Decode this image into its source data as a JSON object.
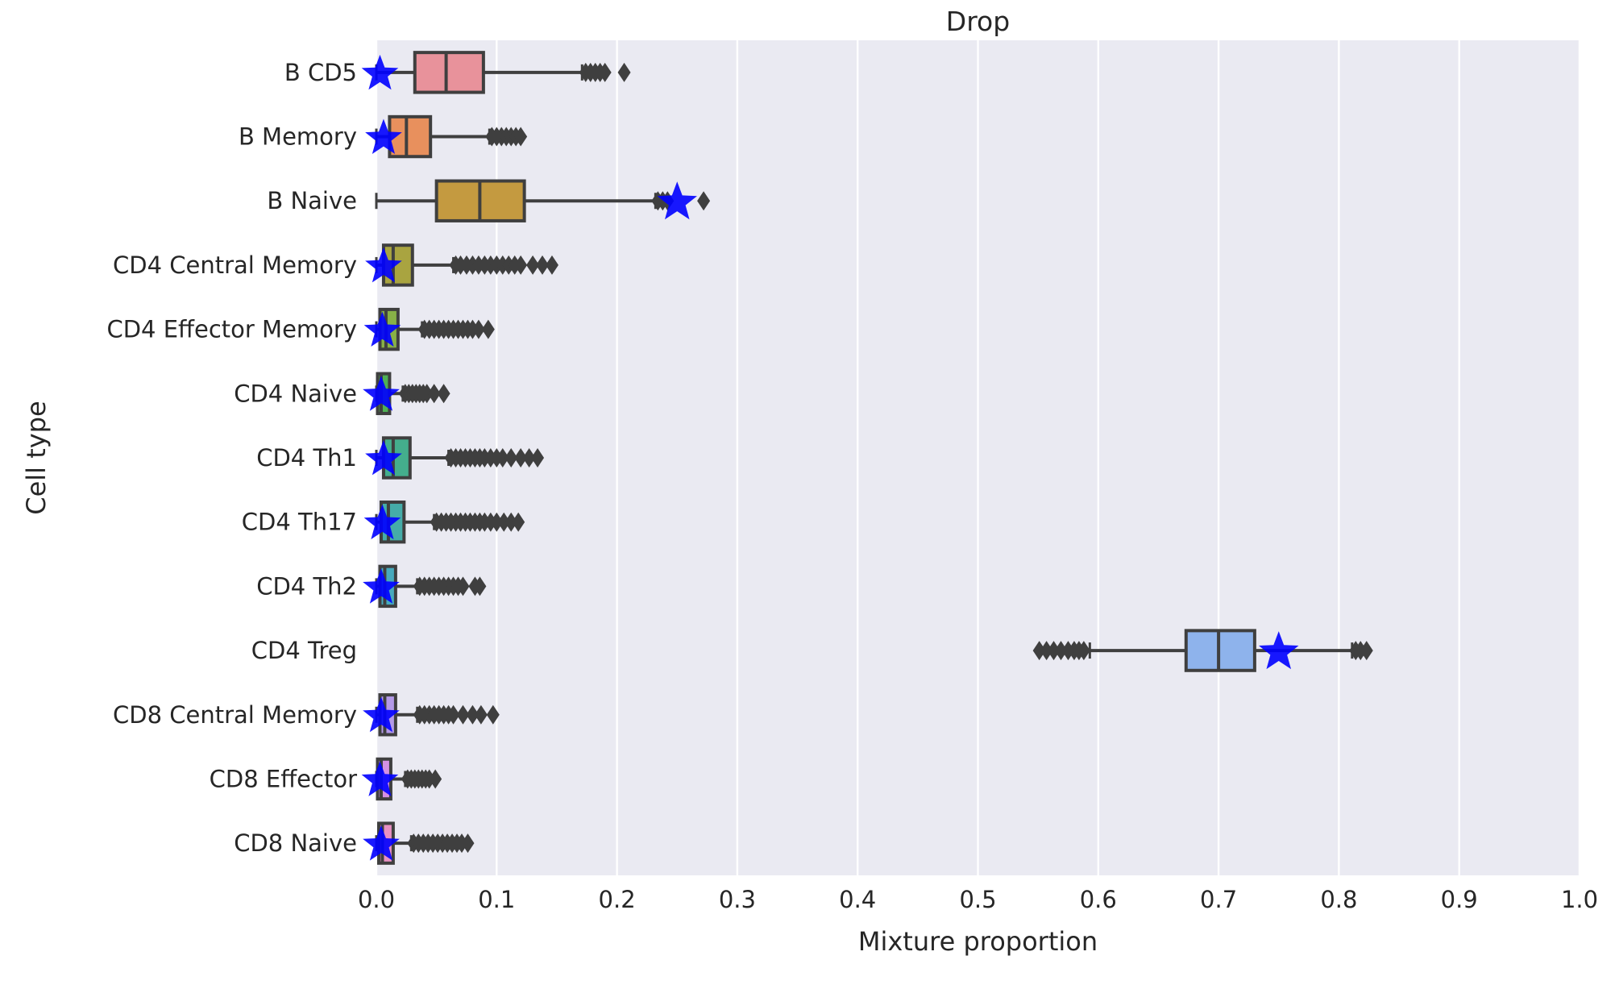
{
  "chart_data": {
    "type": "boxplot",
    "title": "Drop",
    "xlabel": "Mixture proportion",
    "ylabel": "Cell type",
    "xlim": [
      0.0,
      1.0
    ],
    "xticks": [
      "0.0",
      "0.1",
      "0.2",
      "0.3",
      "0.4",
      "0.5",
      "0.6",
      "0.7",
      "0.8",
      "0.9",
      "1.0"
    ],
    "grid": true,
    "background_color": "#eaeaf2",
    "marker_color": "#0000ff",
    "categories": [
      {
        "label": "B CD5",
        "color": "#e8929b",
        "whisker_low": 0.0,
        "q1": 0.032,
        "median": 0.058,
        "q3": 0.089,
        "whisker_high": 0.171,
        "outliers": [
          0.174,
          0.178,
          0.182,
          0.186,
          0.19,
          0.206
        ],
        "star": 0.003
      },
      {
        "label": "B Memory",
        "color": "#e8905d",
        "whisker_low": 0.0,
        "q1": 0.011,
        "median": 0.025,
        "q3": 0.045,
        "whisker_high": 0.094,
        "outliers": [
          0.096,
          0.1,
          0.104,
          0.108,
          0.112,
          0.116,
          0.12
        ],
        "star": 0.006
      },
      {
        "label": "B Naive",
        "color": "#c49a40",
        "whisker_low": 0.0,
        "q1": 0.05,
        "median": 0.086,
        "q3": 0.123,
        "whisker_high": 0.232,
        "outliers": [
          0.234,
          0.238,
          0.242,
          0.272
        ],
        "star": 0.25
      },
      {
        "label": "CD4 Central Memory",
        "color": "#a9a440",
        "whisker_low": 0.0,
        "q1": 0.006,
        "median": 0.014,
        "q3": 0.03,
        "whisker_high": 0.064,
        "outliers": [
          0.066,
          0.07,
          0.075,
          0.08,
          0.085,
          0.09,
          0.095,
          0.1,
          0.105,
          0.11,
          0.115,
          0.12,
          0.13,
          0.138,
          0.146
        ],
        "star": 0.006
      },
      {
        "label": "CD4 Effector Memory",
        "color": "#88b047",
        "whisker_low": 0.0,
        "q1": 0.003,
        "median": 0.008,
        "q3": 0.018,
        "whisker_high": 0.038,
        "outliers": [
          0.04,
          0.044,
          0.048,
          0.052,
          0.056,
          0.06,
          0.064,
          0.068,
          0.072,
          0.076,
          0.08,
          0.085,
          0.093
        ],
        "star": 0.005
      },
      {
        "label": "CD4 Naive",
        "color": "#4fb054",
        "whisker_low": 0.0,
        "q1": 0.001,
        "median": 0.004,
        "q3": 0.011,
        "whisker_high": 0.022,
        "outliers": [
          0.024,
          0.027,
          0.03,
          0.033,
          0.036,
          0.039,
          0.042,
          0.048,
          0.056
        ],
        "star": 0.004
      },
      {
        "label": "CD4 Th1",
        "color": "#44ae8d",
        "whisker_low": 0.0,
        "q1": 0.006,
        "median": 0.014,
        "q3": 0.028,
        "whisker_high": 0.06,
        "outliers": [
          0.062,
          0.066,
          0.07,
          0.074,
          0.078,
          0.082,
          0.086,
          0.09,
          0.095,
          0.1,
          0.105,
          0.112,
          0.12,
          0.127,
          0.134
        ],
        "star": 0.006
      },
      {
        "label": "CD4 Th17",
        "color": "#45aca8",
        "whisker_low": 0.0,
        "q1": 0.004,
        "median": 0.01,
        "q3": 0.023,
        "whisker_high": 0.048,
        "outliers": [
          0.05,
          0.054,
          0.058,
          0.062,
          0.066,
          0.07,
          0.074,
          0.078,
          0.082,
          0.086,
          0.09,
          0.095,
          0.1,
          0.106,
          0.112,
          0.118
        ],
        "star": 0.005
      },
      {
        "label": "CD4 Th2",
        "color": "#47aabd",
        "whisker_low": 0.0,
        "q1": 0.003,
        "median": 0.007,
        "q3": 0.016,
        "whisker_high": 0.034,
        "outliers": [
          0.036,
          0.04,
          0.044,
          0.048,
          0.052,
          0.056,
          0.06,
          0.064,
          0.068,
          0.072,
          0.082,
          0.086
        ],
        "star": 0.004
      },
      {
        "label": "CD4 Treg",
        "color": "#8eb3ec",
        "whisker_low": 0.593,
        "q1": 0.673,
        "median": 0.7,
        "q3": 0.73,
        "whisker_high": 0.811,
        "outliers": [
          0.551,
          0.557,
          0.563,
          0.569,
          0.575,
          0.58,
          0.584,
          0.588,
          0.814,
          0.818,
          0.823
        ],
        "star": 0.75
      },
      {
        "label": "CD8 Central Memory",
        "color": "#b49ae8",
        "whisker_low": 0.0,
        "q1": 0.003,
        "median": 0.007,
        "q3": 0.016,
        "whisker_high": 0.034,
        "outliers": [
          0.036,
          0.04,
          0.044,
          0.048,
          0.052,
          0.056,
          0.06,
          0.064,
          0.072,
          0.08,
          0.087,
          0.097
        ],
        "star": 0.004
      },
      {
        "label": "CD8 Effector",
        "color": "#d591e3",
        "whisker_low": 0.0,
        "q1": 0.001,
        "median": 0.004,
        "q3": 0.012,
        "whisker_high": 0.024,
        "outliers": [
          0.026,
          0.029,
          0.032,
          0.035,
          0.038,
          0.041,
          0.044,
          0.049
        ],
        "star": 0.003
      },
      {
        "label": "CD8 Naive",
        "color": "#e890c2",
        "whisker_low": 0.0,
        "q1": 0.002,
        "median": 0.005,
        "q3": 0.014,
        "whisker_high": 0.029,
        "outliers": [
          0.031,
          0.035,
          0.039,
          0.043,
          0.047,
          0.051,
          0.055,
          0.059,
          0.063,
          0.067,
          0.071,
          0.076
        ],
        "star": 0.004
      }
    ]
  }
}
